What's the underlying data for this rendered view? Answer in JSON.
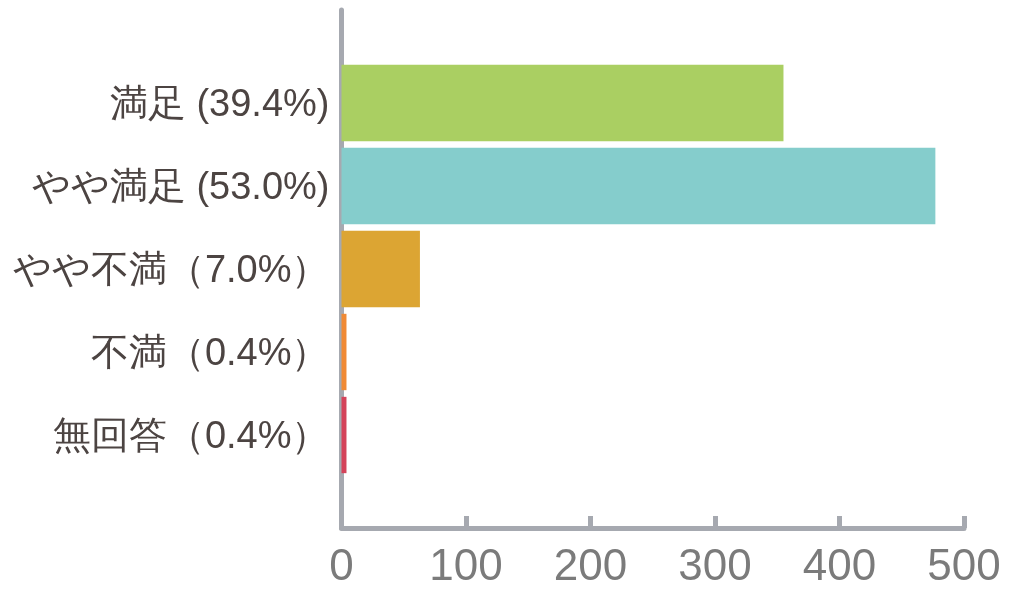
{
  "chart_data": {
    "type": "bar",
    "orientation": "horizontal",
    "categories": [
      "満足 (39.4%)",
      "やや満足 (53.0%)",
      "やや不満（7.0%）",
      "不満（0.4%）",
      "無回答（0.4%）"
    ],
    "values": [
      355,
      477,
      63,
      4,
      4
    ],
    "colors": [
      "#aacf62",
      "#85cdcc",
      "#dca533",
      "#f08a35",
      "#d4435a"
    ],
    "xlim": [
      0,
      500
    ],
    "xticks": [
      0,
      100,
      200,
      300,
      400,
      500
    ]
  }
}
